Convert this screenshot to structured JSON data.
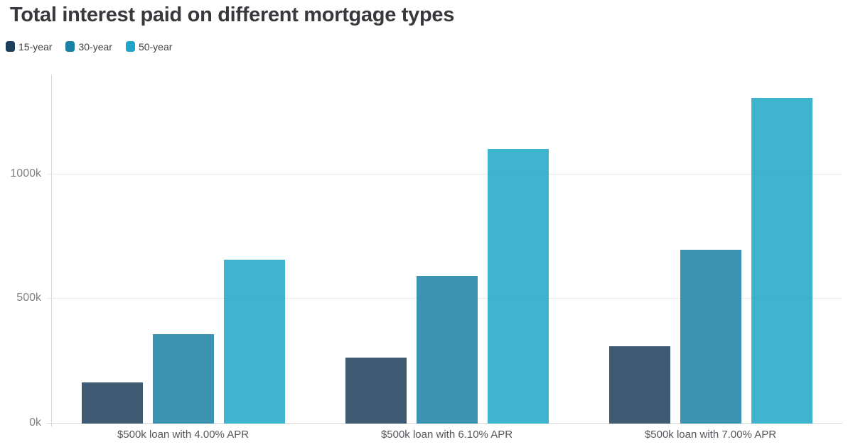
{
  "chart_data": {
    "type": "bar",
    "title": "Total interest paid on different mortgage types",
    "categories": [
      "$500k loan with 4.00% APR",
      "$500k loan with 6.10% APR",
      "$500k loan with 7.00% APR"
    ],
    "series": [
      {
        "name": "15-year",
        "color": "#1d3e5c",
        "values": [
          166,
          264,
          309
        ]
      },
      {
        "name": "30-year",
        "color": "#1a80a4",
        "values": [
          359,
          591,
          698
        ]
      },
      {
        "name": "50-year",
        "color": "#1fa6c7",
        "values": [
          657,
          1101,
          1305
        ]
      }
    ],
    "values_unit": "k",
    "xlabel": "",
    "ylabel": "",
    "ylim": [
      0,
      1400
    ],
    "y_ticks": [
      {
        "value": 0,
        "label": "0k"
      },
      {
        "value": 500,
        "label": "500k"
      },
      {
        "value": 1000,
        "label": "1000k"
      }
    ],
    "legend_position": "top-left",
    "grid": "horizontal",
    "colors": {
      "title_text": "#37393c",
      "legend_text": "#3f4245",
      "ytick_text": "#7e8286",
      "xtick_text": "#53565a",
      "gridline": "#eaeaec",
      "axis_line": "#d9d9db",
      "background": "#ffffff"
    }
  }
}
